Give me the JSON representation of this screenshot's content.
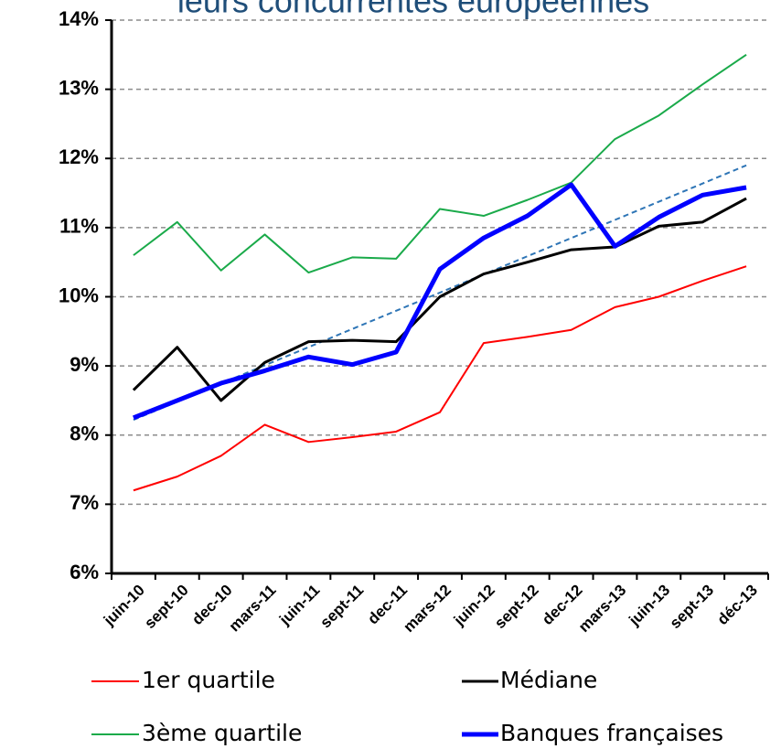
{
  "chart_data": {
    "type": "line",
    "title": "leurs concurrentes européennes",
    "categories": [
      "juin-10",
      "sept-10",
      "dec-10",
      "mars-11",
      "juin-11",
      "sept-11",
      "dec-11",
      "mars-12",
      "juin-12",
      "sept-12",
      "dec-12",
      "mars-13",
      "juin-13",
      "sept-13",
      "déc-13"
    ],
    "series": [
      {
        "name": "1er quartile",
        "color": "#ff0000",
        "width": 2,
        "values": [
          7.2,
          7.4,
          7.7,
          8.15,
          7.9,
          7.97,
          8.05,
          8.33,
          9.33,
          9.42,
          9.52,
          9.85,
          10.0,
          10.23,
          10.44
        ]
      },
      {
        "name": "Médiane",
        "color": "#000000",
        "width": 3,
        "values": [
          8.65,
          9.27,
          8.5,
          9.05,
          9.35,
          9.37,
          9.35,
          10.0,
          10.33,
          10.5,
          10.68,
          10.72,
          11.02,
          11.08,
          11.42
        ]
      },
      {
        "name": "3ème quartile",
        "color": "#1aaa4a",
        "width": 2,
        "values": [
          10.6,
          11.08,
          10.38,
          10.9,
          10.35,
          10.57,
          10.55,
          11.27,
          11.17,
          11.4,
          11.65,
          12.28,
          12.62,
          13.07,
          13.5
        ]
      },
      {
        "name": "Banques françaises",
        "color": "#0000ff",
        "width": 5,
        "values": [
          8.25,
          8.5,
          8.75,
          8.93,
          9.13,
          9.02,
          9.2,
          10.4,
          10.85,
          11.17,
          11.62,
          10.73,
          11.15,
          11.47,
          11.58
        ]
      }
    ],
    "trendline": {
      "color": "#2e75b6",
      "values": [
        8.22,
        11.9
      ]
    },
    "ylim": [
      6,
      14
    ],
    "yticks": [
      {
        "value": 6,
        "label": "6%"
      },
      {
        "value": 7,
        "label": "7%"
      },
      {
        "value": 8,
        "label": "8%"
      },
      {
        "value": 9,
        "label": "9%"
      },
      {
        "value": 10,
        "label": "10%"
      },
      {
        "value": 11,
        "label": "11%"
      },
      {
        "value": 12,
        "label": "12%"
      },
      {
        "value": 13,
        "label": "13%"
      },
      {
        "value": 14,
        "label": "14%"
      }
    ],
    "grid": true
  }
}
